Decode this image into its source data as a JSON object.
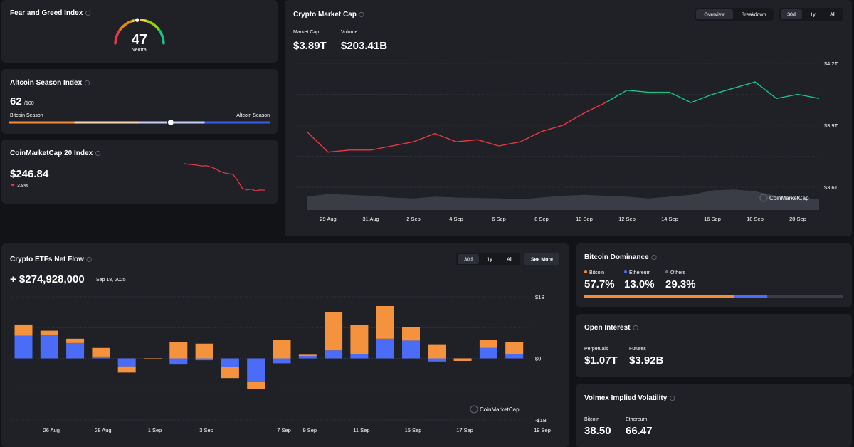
{
  "fear_greed": {
    "title": "Fear and Greed Index",
    "value": 47,
    "label": "Neutral",
    "range": [
      0,
      100
    ]
  },
  "altcoin_season": {
    "title": "Altcoin Season Index",
    "value": 62,
    "max": {
      "value": 100,
      "label": "/100"
    },
    "left_label": "Bitcoin Season",
    "right_label": "Altcoin Season"
  },
  "cmc20": {
    "title": "CoinMarketCap 20 Index",
    "price": "$246.84",
    "change": "3.8%",
    "sparkline": {
      "type": "line",
      "color": "#ea3943",
      "ylim": [
        244,
        264
      ],
      "values": [
        262.5,
        262,
        261.8,
        261.5,
        261,
        261.2,
        260.5,
        259.5,
        258,
        257,
        256.5,
        256,
        252.5,
        248,
        247,
        247.5,
        246.5,
        247,
        246.84
      ]
    }
  },
  "market_cap": {
    "title": "Crypto Market Cap",
    "tabs": [
      "Overview",
      "Breakdown"
    ],
    "ranges": [
      "30d",
      "1y",
      "All"
    ],
    "stats": [
      {
        "label": "Market Cap",
        "value": "$3.89T"
      },
      {
        "label": "Volume",
        "value": "$203.41B"
      }
    ],
    "watermark": "CoinMarketCap",
    "chart_data": {
      "type": "line",
      "categories": [
        null,
        "29 Aug",
        null,
        "31 Aug",
        null,
        "2 Sep",
        null,
        "4 Sep",
        null,
        "6 Sep",
        null,
        "8 Sep",
        null,
        "10 Sep",
        null,
        "12 Sep",
        null,
        "14 Sep",
        null,
        "16 Sep",
        null,
        "18 Sep",
        null,
        "20 Sep",
        null
      ],
      "series": [
        {
          "color": "#ea3943",
          "values": [
            3.87,
            3.77,
            3.78,
            3.78,
            3.8,
            3.82,
            3.86,
            3.82,
            3.83,
            3.8,
            3.82,
            3.87,
            3.9,
            3.96,
            4.01,
            null,
            null,
            null,
            null,
            null,
            null,
            null,
            null,
            null,
            null
          ]
        },
        {
          "color": "#16c784",
          "values": [
            null,
            null,
            null,
            null,
            null,
            null,
            null,
            null,
            null,
            null,
            null,
            null,
            null,
            null,
            4.01,
            4.07,
            4.06,
            4.06,
            4.01,
            4.05,
            4.08,
            4.11,
            4.03,
            4.05,
            4.03
          ]
        }
      ],
      "ylim": [
        3.6,
        4.2
      ],
      "yticks": [
        {
          "value": 4.2,
          "label": "$4.2T"
        },
        {
          "value": 3.9,
          "label": "$3.9T"
        },
        {
          "value": 3.6,
          "label": "$3.6T"
        }
      ],
      "minor_grid": [
        4.05,
        3.75
      ],
      "grid": true,
      "volume": {
        "color": "#3a3d46",
        "ylim": [
          0,
          800
        ],
        "values": [
          150,
          180,
          170,
          160,
          140,
          130,
          150,
          140,
          135,
          130,
          120,
          140,
          160,
          170,
          160,
          150,
          130,
          150,
          170,
          220,
          230,
          210,
          160,
          140,
          120
        ]
      }
    }
  },
  "etf_flow": {
    "title": "Crypto ETFs Net Flow",
    "ranges": [
      "30d",
      "1y",
      "All"
    ],
    "button": "See More",
    "net_flow": "+ $274,928,000",
    "date": "Sep 18, 2025",
    "watermark": "CoinMarketCap",
    "chart_data": {
      "type": "bar",
      "stacked": true,
      "categories": [
        null,
        "26 Aug",
        null,
        "28 Aug",
        null,
        "1 Sep",
        null,
        "3 Sep",
        null,
        null,
        "7 Sep",
        "9 Sep",
        null,
        "11 Sep",
        null,
        "15 Sep",
        null,
        "17 Sep",
        null,
        null,
        "19 Sep"
      ],
      "series": [
        {
          "color": "#4a6cf7",
          "values": [
            0.37,
            0.38,
            0.25,
            0.03,
            -0.13,
            -0.01,
            -0.1,
            -0.03,
            -0.14,
            -0.38,
            -0.08,
            0.04,
            0.13,
            0.07,
            0.32,
            0.29,
            -0.05,
            0,
            0.17,
            0.07,
            null
          ]
        },
        {
          "color": "#f5923e",
          "values": [
            0.18,
            0.07,
            0.07,
            0.14,
            -0.1,
            0,
            0.26,
            0.24,
            -0.18,
            -0.12,
            0.3,
            0.02,
            0.62,
            0.47,
            0.53,
            0.22,
            0.23,
            -0.04,
            0.13,
            0.2,
            null
          ]
        }
      ],
      "ylim": [
        -1,
        1
      ],
      "yticks": [
        {
          "value": 1,
          "label": "$1B"
        },
        {
          "value": 0,
          "label": "$0"
        },
        {
          "value": -1,
          "label": "-$1B"
        }
      ],
      "minor_grid": [
        0.5,
        -0.5
      ],
      "grid": true
    }
  },
  "dominance": {
    "title": "Bitcoin Dominance",
    "chart_data": {
      "type": "bar",
      "categories": [
        "Bitcoin",
        "Ethereum",
        "Others"
      ],
      "values": [
        57.7,
        13.0,
        29.3
      ],
      "value_labels": [
        "57.7%",
        "13.0%",
        "29.3%"
      ],
      "colors": [
        "#f68c35",
        "#4a6cf7",
        "#6b6f7b"
      ],
      "xlim": [
        0,
        100
      ]
    }
  },
  "open_interest": {
    "title": "Open Interest",
    "items": [
      {
        "label": "Perpetuals",
        "value": "$1.07T"
      },
      {
        "label": "Futures",
        "value": "$3.92B"
      }
    ]
  },
  "volatility": {
    "title": "Volmex Implied Volatility",
    "items": [
      {
        "label": "Bitcoin",
        "value": "38.50"
      },
      {
        "label": "Ethereum",
        "value": "66.47"
      }
    ]
  }
}
